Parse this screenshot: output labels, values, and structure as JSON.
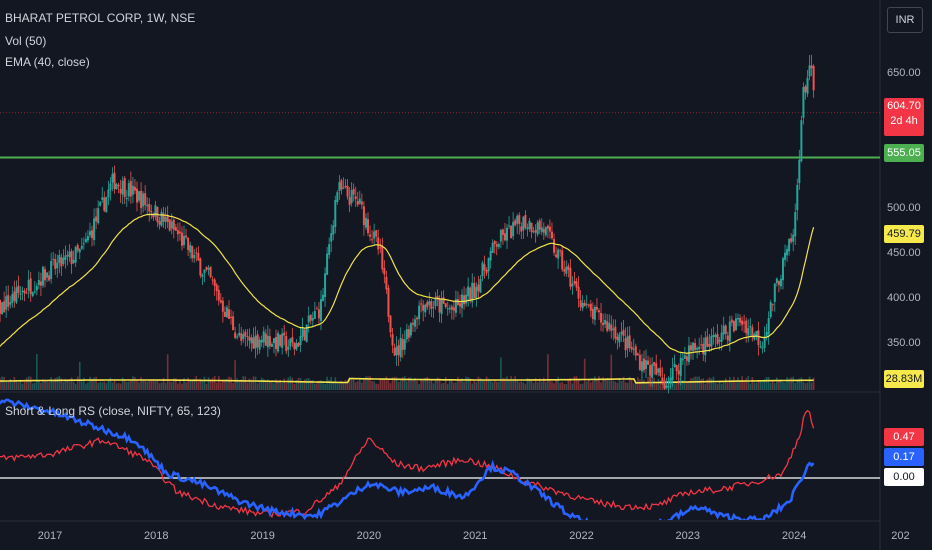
{
  "header": {
    "symbol_line": "BHARAT PETROL CORP, 1W, NSE",
    "vol_line": "Vol (50)",
    "ema_line": "EMA (40, close)",
    "rs_line": "Short & Long RS (close, NIFTY, 65, 123)",
    "currency_button": "INR"
  },
  "price_tags": {
    "last_price": "604.70",
    "countdown": "2d 4h",
    "support_line": "555.05",
    "ema_value": "459.79",
    "volume_value": "28.83M"
  },
  "rs_tags": {
    "long_rs": "0.47",
    "short_rs": "0.17",
    "zero": "0.00"
  },
  "colors": {
    "background": "#131722",
    "candle_up": "#26a69a",
    "candle_down": "#ef5350",
    "ema": "#f2e24b",
    "support": "#4caf50",
    "last_price": "#f23645",
    "rs_long": "#f23645",
    "rs_short": "#2962ff"
  },
  "chart_data": [
    {
      "type": "candlestick",
      "title": "BHARAT PETROL CORP, 1W, NSE",
      "x_ticks": [
        "2017",
        "2018",
        "2019",
        "2020",
        "2021",
        "2022",
        "2023",
        "2024",
        "202"
      ],
      "y_ticks": [
        350,
        400,
        450,
        500,
        650
      ],
      "ylim": [
        290,
        690
      ],
      "horizontal_lines": [
        {
          "name": "support",
          "value": 555.05
        },
        {
          "name": "last",
          "value": 604.7
        }
      ],
      "close_keypoints": [
        {
          "x": 2016.0,
          "y": 330
        },
        {
          "x": 2016.5,
          "y": 385
        },
        {
          "x": 2017.0,
          "y": 430
        },
        {
          "x": 2017.3,
          "y": 450
        },
        {
          "x": 2017.6,
          "y": 530
        },
        {
          "x": 2017.85,
          "y": 510
        },
        {
          "x": 2018.2,
          "y": 470
        },
        {
          "x": 2018.5,
          "y": 420
        },
        {
          "x": 2018.8,
          "y": 350
        },
        {
          "x": 2019.0,
          "y": 355
        },
        {
          "x": 2019.3,
          "y": 345
        },
        {
          "x": 2019.55,
          "y": 390
        },
        {
          "x": 2019.7,
          "y": 520
        },
        {
          "x": 2019.9,
          "y": 505
        },
        {
          "x": 2020.1,
          "y": 450
        },
        {
          "x": 2020.25,
          "y": 335
        },
        {
          "x": 2020.5,
          "y": 395
        },
        {
          "x": 2020.8,
          "y": 385
        },
        {
          "x": 2021.0,
          "y": 410
        },
        {
          "x": 2021.2,
          "y": 460
        },
        {
          "x": 2021.45,
          "y": 485
        },
        {
          "x": 2021.65,
          "y": 475
        },
        {
          "x": 2021.8,
          "y": 440
        },
        {
          "x": 2022.05,
          "y": 385
        },
        {
          "x": 2022.3,
          "y": 365
        },
        {
          "x": 2022.55,
          "y": 330
        },
        {
          "x": 2022.8,
          "y": 305
        },
        {
          "x": 2023.0,
          "y": 340
        },
        {
          "x": 2023.3,
          "y": 355
        },
        {
          "x": 2023.5,
          "y": 375
        },
        {
          "x": 2023.7,
          "y": 350
        },
        {
          "x": 2023.85,
          "y": 420
        },
        {
          "x": 2024.0,
          "y": 470
        },
        {
          "x": 2024.08,
          "y": 620
        },
        {
          "x": 2024.15,
          "y": 660
        },
        {
          "x": 2024.2,
          "y": 604.7
        }
      ],
      "ema_last": 459.79
    },
    {
      "type": "bar",
      "title": "Vol (50)",
      "series": [
        {
          "name": "Vol",
          "last_label": "28.83M"
        }
      ]
    },
    {
      "type": "line",
      "title": "Short & Long RS (close, NIFTY, 65, 123)",
      "y_ticks": [
        0.0
      ],
      "ylim": [
        -0.55,
        0.95
      ],
      "series": [
        {
          "name": "Long RS",
          "last_value": 0.47,
          "keypoints": [
            {
              "x": 2016.0,
              "y": 0.35
            },
            {
              "x": 2016.5,
              "y": 0.2
            },
            {
              "x": 2017.0,
              "y": 0.25
            },
            {
              "x": 2017.5,
              "y": 0.4
            },
            {
              "x": 2017.9,
              "y": 0.2
            },
            {
              "x": 2018.2,
              "y": -0.15
            },
            {
              "x": 2018.6,
              "y": -0.3
            },
            {
              "x": 2019.0,
              "y": -0.38
            },
            {
              "x": 2019.4,
              "y": -0.35
            },
            {
              "x": 2019.7,
              "y": -0.1
            },
            {
              "x": 2020.0,
              "y": 0.42
            },
            {
              "x": 2020.25,
              "y": 0.15
            },
            {
              "x": 2020.5,
              "y": 0.1
            },
            {
              "x": 2020.9,
              "y": 0.2
            },
            {
              "x": 2021.2,
              "y": 0.1
            },
            {
              "x": 2021.5,
              "y": -0.05
            },
            {
              "x": 2021.8,
              "y": -0.15
            },
            {
              "x": 2022.1,
              "y": -0.25
            },
            {
              "x": 2022.4,
              "y": -0.3
            },
            {
              "x": 2022.7,
              "y": -0.3
            },
            {
              "x": 2023.0,
              "y": -0.15
            },
            {
              "x": 2023.3,
              "y": -0.12
            },
            {
              "x": 2023.6,
              "y": -0.05
            },
            {
              "x": 2023.9,
              "y": 0.05
            },
            {
              "x": 2024.05,
              "y": 0.45
            },
            {
              "x": 2024.12,
              "y": 0.75
            },
            {
              "x": 2024.2,
              "y": 0.47
            }
          ]
        },
        {
          "name": "Short RS",
          "last_value": 0.17,
          "keypoints": [
            {
              "x": 2016.0,
              "y": 0.95
            },
            {
              "x": 2016.6,
              "y": 0.8
            },
            {
              "x": 2017.0,
              "y": 0.7
            },
            {
              "x": 2017.4,
              "y": 0.55
            },
            {
              "x": 2017.8,
              "y": 0.4
            },
            {
              "x": 2018.1,
              "y": 0.05
            },
            {
              "x": 2018.4,
              "y": -0.05
            },
            {
              "x": 2018.8,
              "y": -0.25
            },
            {
              "x": 2019.1,
              "y": -0.35
            },
            {
              "x": 2019.5,
              "y": -0.4
            },
            {
              "x": 2019.8,
              "y": -0.2
            },
            {
              "x": 2020.0,
              "y": -0.05
            },
            {
              "x": 2020.3,
              "y": -0.15
            },
            {
              "x": 2020.6,
              "y": -0.1
            },
            {
              "x": 2020.9,
              "y": -0.2
            },
            {
              "x": 2021.15,
              "y": 0.12
            },
            {
              "x": 2021.35,
              "y": 0.05
            },
            {
              "x": 2021.6,
              "y": -0.15
            },
            {
              "x": 2021.9,
              "y": -0.4
            },
            {
              "x": 2022.2,
              "y": -0.55
            },
            {
              "x": 2022.5,
              "y": -0.55
            },
            {
              "x": 2022.8,
              "y": -0.45
            },
            {
              "x": 2023.1,
              "y": -0.3
            },
            {
              "x": 2023.3,
              "y": -0.4
            },
            {
              "x": 2023.7,
              "y": -0.45
            },
            {
              "x": 2023.95,
              "y": -0.25
            },
            {
              "x": 2024.05,
              "y": -0.05
            },
            {
              "x": 2024.12,
              "y": 0.12
            },
            {
              "x": 2024.2,
              "y": 0.17
            }
          ]
        }
      ],
      "horizontal_lines": [
        {
          "name": "zero",
          "value": 0.0
        }
      ]
    }
  ]
}
